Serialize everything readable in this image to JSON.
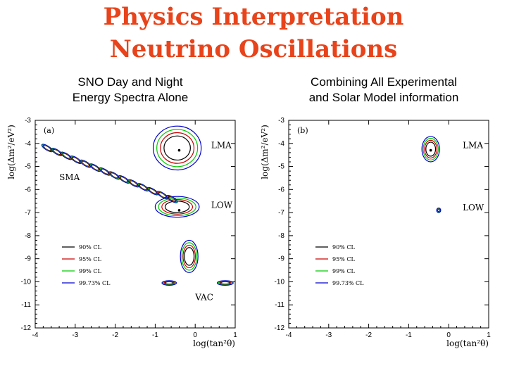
{
  "header": {
    "title_line1": "Physics Interpretation",
    "title_line2": "Neutrino Oscillations"
  },
  "colors": {
    "title": "#e8431a",
    "cl90": "#000000",
    "cl95": "#cc0000",
    "cl99": "#00cc00",
    "cl9973": "#0000cc"
  },
  "chart_data": [
    {
      "type": "contour",
      "subtitle_line1": "SNO Day and Night",
      "subtitle_line2": "Energy Spectra Alone",
      "panel_label": "(a)",
      "xlabel": "log(tan²θ)",
      "ylabel": "log(Δm²/eV²)",
      "xlim": [
        -4,
        1
      ],
      "ylim": [
        -12,
        -3
      ],
      "xticks": [
        -4,
        -3,
        -2,
        -1,
        0,
        1
      ],
      "yticks": [
        -12,
        -11,
        -10,
        -9,
        -8,
        -7,
        -6,
        -5,
        -4,
        -3
      ],
      "legend": [
        "90% CL",
        "95% CL",
        "99% CL",
        "99.73% CL"
      ],
      "region_labels": [
        {
          "text": "LMA",
          "x": 0.4,
          "y": -4.2
        },
        {
          "text": "SMA",
          "x": -3.4,
          "y": -5.6
        },
        {
          "text": "LOW",
          "x": 0.4,
          "y": -6.8
        },
        {
          "text": "VAC",
          "x": 0.0,
          "y": -10.8
        }
      ],
      "best_fit_points": [
        {
          "x": -0.4,
          "y": -4.3
        },
        {
          "x": -0.4,
          "y": -6.9
        }
      ],
      "regions": [
        {
          "x": -0.45,
          "y": -4.2,
          "rx": 0.6,
          "ry": 0.95
        },
        {
          "x": -0.45,
          "y": -6.75,
          "rx": 0.55,
          "ry": 0.45
        },
        {
          "x": -0.15,
          "y": -8.9,
          "rx": 0.22,
          "ry": 0.7
        },
        {
          "x": -0.65,
          "y": -10.05,
          "rx": 0.18,
          "ry": 0.1
        },
        {
          "x": 0.75,
          "y": -10.05,
          "rx": 0.2,
          "ry": 0.1
        }
      ]
    },
    {
      "type": "contour",
      "subtitle_line1": "Combining All Experimental",
      "subtitle_line2": "and Solar Model information",
      "panel_label": "(b)",
      "xlabel": "log(tan²θ)",
      "ylabel": "log(Δm²/eV²)",
      "xlim": [
        -4,
        1
      ],
      "ylim": [
        -12,
        -3
      ],
      "xticks": [
        -4,
        -3,
        -2,
        -1,
        0,
        1
      ],
      "yticks": [
        -12,
        -11,
        -10,
        -9,
        -8,
        -7,
        -6,
        -5,
        -4,
        -3
      ],
      "legend": [
        "90% CL",
        "95% CL",
        "99% CL",
        "99.73% CL"
      ],
      "region_labels": [
        {
          "text": "LMA",
          "x": 0.35,
          "y": -4.2
        },
        {
          "text": "LOW",
          "x": 0.35,
          "y": -6.9
        }
      ],
      "best_fit_points": [
        {
          "x": -0.45,
          "y": -4.3
        }
      ],
      "regions": [
        {
          "x": -0.45,
          "y": -4.25,
          "rx": 0.22,
          "ry": 0.55
        },
        {
          "x": -0.25,
          "y": -6.9,
          "rx": 0.05,
          "ry": 0.1
        }
      ]
    }
  ]
}
